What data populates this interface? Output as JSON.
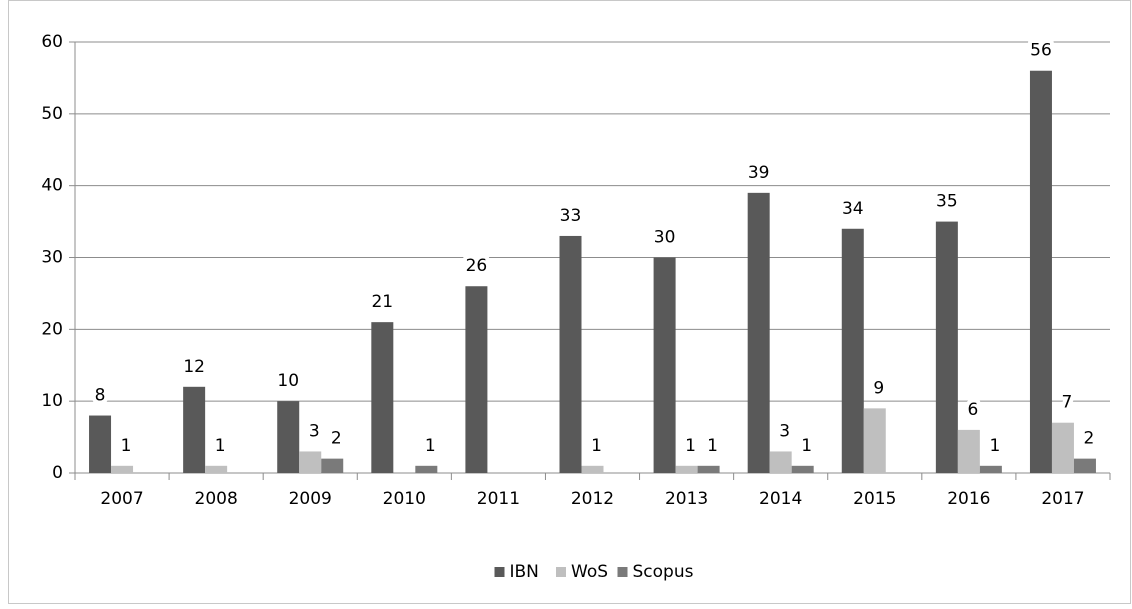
{
  "chart_data": {
    "type": "bar",
    "categories": [
      "2007",
      "2008",
      "2009",
      "2010",
      "2011",
      "2012",
      "2013",
      "2014",
      "2015",
      "2016",
      "2017"
    ],
    "series": [
      {
        "name": "IBN",
        "color": "#595959",
        "values": [
          8,
          12,
          10,
          21,
          26,
          33,
          30,
          39,
          34,
          35,
          56
        ]
      },
      {
        "name": "WoS",
        "color": "#bfbfbf",
        "values": [
          1,
          1,
          3,
          null,
          null,
          1,
          1,
          3,
          9,
          6,
          7
        ]
      },
      {
        "name": "Scopus",
        "color": "#7a7a7a",
        "values": [
          null,
          null,
          2,
          1,
          null,
          null,
          1,
          1,
          null,
          1,
          2
        ]
      }
    ],
    "ylim": [
      0,
      60
    ],
    "yticks": [
      0,
      10,
      20,
      30,
      40,
      50,
      60
    ],
    "grid": true,
    "legend": "bottom"
  }
}
